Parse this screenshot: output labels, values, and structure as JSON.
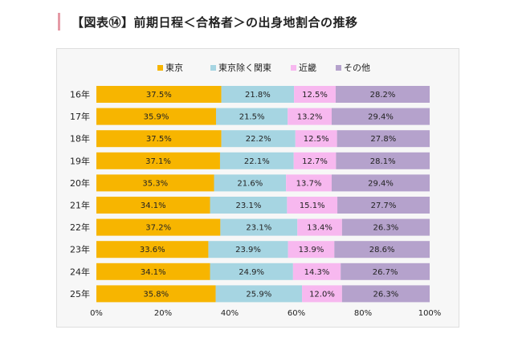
{
  "heading": {
    "title": "【図表⑭】前期日程＜合格者＞の出身地割合の推移"
  },
  "chart_data": {
    "type": "bar",
    "orientation": "horizontal",
    "stacked": true,
    "stack_mode": "percent",
    "categories": [
      "16年",
      "17年",
      "18年",
      "19年",
      "20年",
      "21年",
      "22年",
      "23年",
      "24年",
      "25年"
    ],
    "series": [
      {
        "name": "東京",
        "color": "#f7b500",
        "values": [
          37.5,
          35.9,
          37.5,
          37.1,
          35.3,
          34.1,
          37.2,
          33.6,
          34.1,
          35.8
        ],
        "labels": [
          "37.5%",
          "35.9%",
          "37.5%",
          "37.1%",
          "35.3%",
          "34.1%",
          "37.2%",
          "33.6%",
          "34.1%",
          "35.8%"
        ]
      },
      {
        "name": "東京除く関東",
        "color": "#a6d5e2",
        "values": [
          21.8,
          21.5,
          22.2,
          22.1,
          21.6,
          23.1,
          23.1,
          23.9,
          24.9,
          25.9
        ],
        "labels": [
          "21.8%",
          "21.5%",
          "22.2%",
          "22.1%",
          "21.6%",
          "23.1%",
          "23.1%",
          "23.9%",
          "24.9%",
          "25.9%"
        ]
      },
      {
        "name": "近畿",
        "color": "#f7b8ef",
        "values": [
          12.5,
          13.2,
          12.5,
          12.7,
          13.7,
          15.1,
          13.4,
          13.9,
          14.3,
          12.0
        ],
        "labels": [
          "12.5%",
          "13.2%",
          "12.5%",
          "12.7%",
          "13.7%",
          "15.1%",
          "13.4%",
          "13.9%",
          "14.3%",
          "12.0%"
        ]
      },
      {
        "name": "その他",
        "color": "#b5a2cc",
        "values": [
          28.2,
          29.4,
          27.8,
          28.1,
          29.4,
          27.7,
          26.3,
          28.6,
          26.7,
          26.3
        ],
        "labels": [
          "28.2%",
          "29.4%",
          "27.8%",
          "28.1%",
          "29.4%",
          "27.7%",
          "26.3%",
          "28.6%",
          "26.7%",
          "26.3%"
        ]
      }
    ],
    "xlim": [
      0,
      100
    ],
    "x_ticks": [
      "0%",
      "20%",
      "40%",
      "60%",
      "80%",
      "100%"
    ],
    "legend_position": "top",
    "grid": false
  }
}
